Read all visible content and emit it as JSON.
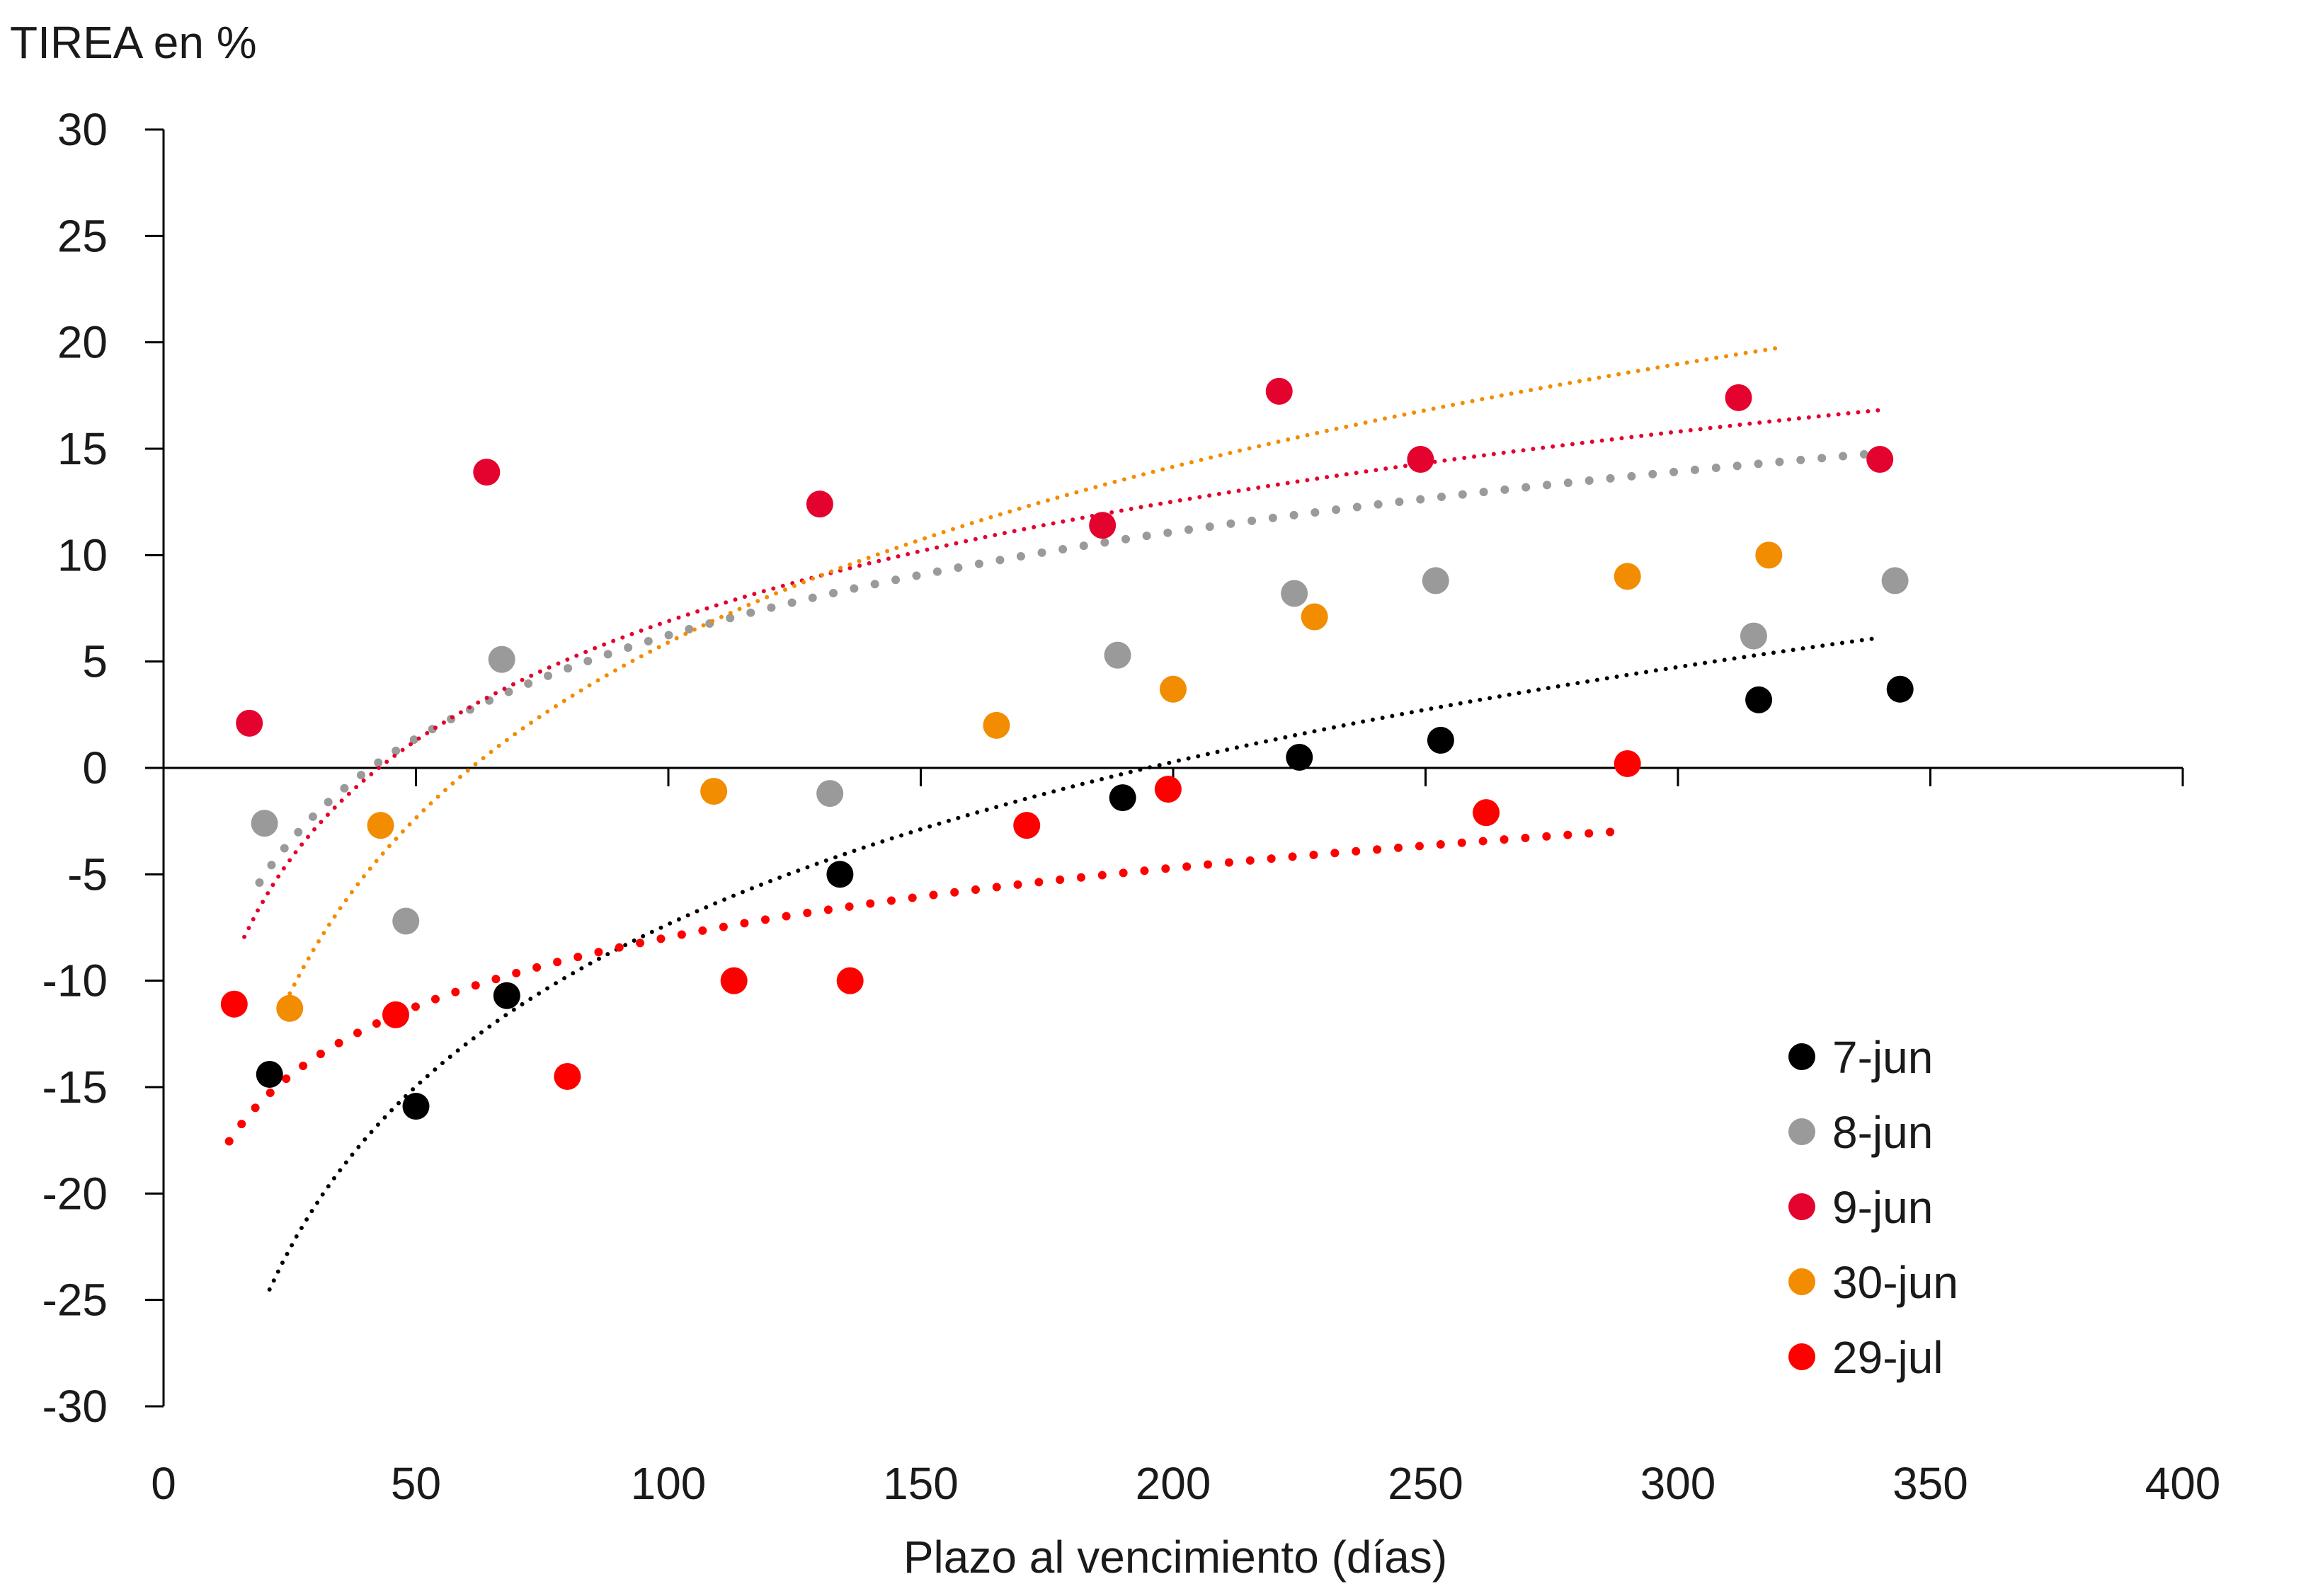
{
  "chart_data": {
    "type": "scatter",
    "title": "",
    "ylabel": "TIREA en %",
    "xlabel": "Plazo al vencimiento (días)",
    "xlim": [
      0,
      400
    ],
    "ylim": [
      -30,
      30
    ],
    "xticks": [
      0,
      50,
      100,
      150,
      200,
      250,
      300,
      350,
      400
    ],
    "yticks": [
      30,
      25,
      20,
      15,
      10,
      5,
      0,
      -5,
      -10,
      -15,
      -20,
      -25,
      -30
    ],
    "grid": false,
    "legend_position": "bottom-right",
    "trendline_type": "logarithmic",
    "series": [
      {
        "name": "7-jun",
        "color": "#000000",
        "x": [
          21,
          50,
          68,
          134,
          190,
          225,
          253,
          316,
          344
        ],
        "y": [
          -14.4,
          -15.9,
          -10.7,
          -5.0,
          -1.4,
          0.5,
          1.3,
          3.2,
          3.7
        ],
        "trend": {
          "a": -58.0,
          "b": 11.0,
          "x_range": [
            21,
            340
          ],
          "dot_style": "fine"
        }
      },
      {
        "name": "8-jun",
        "color": "#9a9a9a",
        "x": [
          20,
          48,
          67,
          132,
          189,
          224,
          252,
          315,
          343
        ],
        "y": [
          -2.6,
          -7.2,
          5.1,
          -1.2,
          5.3,
          8.2,
          8.8,
          6.2,
          8.8
        ],
        "trend": {
          "a": -26.0,
          "b": 7.0,
          "x_range": [
            19,
            340
          ],
          "dot_style": "coarse"
        }
      },
      {
        "name": "9-jun",
        "color": "#e4032e",
        "x": [
          17,
          64,
          130,
          186,
          221,
          249,
          312,
          340
        ],
        "y": [
          2.1,
          13.9,
          12.4,
          11.4,
          17.7,
          14.5,
          17.4,
          14.5
        ],
        "trend": {
          "a": -30.4,
          "b": 8.1,
          "x_range": [
            16,
            340
          ],
          "dot_style": "fine"
        }
      },
      {
        "name": "30-jun",
        "color": "#f28c00",
        "x": [
          25,
          43,
          109,
          165,
          200,
          228,
          290,
          318
        ],
        "y": [
          -11.3,
          -2.7,
          -1.1,
          2.0,
          3.7,
          7.1,
          9.0,
          10.0
        ],
        "trend": {
          "a": -48.9,
          "b": 11.9,
          "x_range": [
            25,
            320
          ],
          "dot_style": "fine"
        }
      },
      {
        "name": "29-jul",
        "color": "#ff0000",
        "x": [
          14,
          46,
          80,
          113,
          136,
          171,
          199,
          262,
          290
        ],
        "y": [
          -11.1,
          -11.6,
          -14.5,
          -10.0,
          -10.0,
          -2.7,
          -1.0,
          -2.1,
          0.2
        ],
        "trend": {
          "a": -29.6,
          "b": 4.7,
          "x_range": [
            13,
            288
          ],
          "dot_style": "coarse"
        }
      }
    ]
  }
}
